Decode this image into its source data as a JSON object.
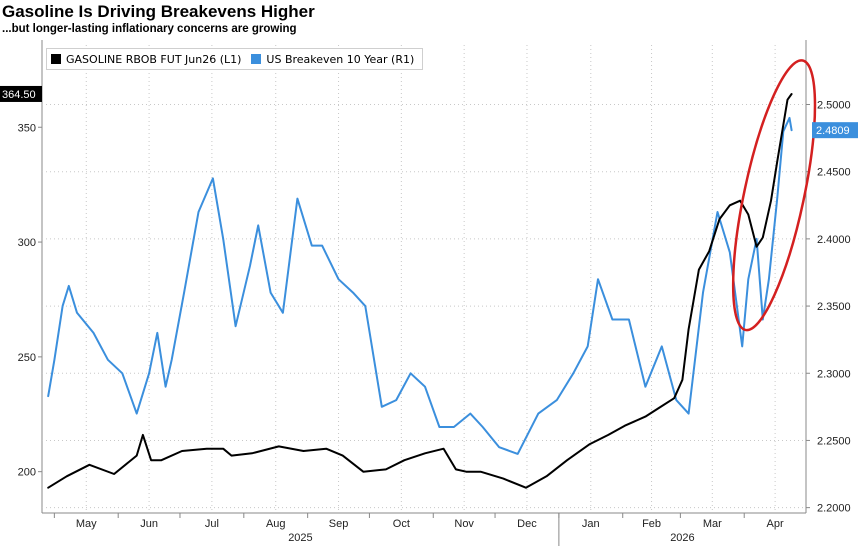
{
  "chart_data": {
    "type": "line",
    "title": "Gasoline Is Driving Breakevens Higher",
    "subtitle": "...but longer-lasting inflationary concerns are growing",
    "colors": {
      "gasoline": "#000000",
      "breakeven": "#3b8fdd",
      "annotation": "#d42020",
      "grid": "#c8c8c8"
    },
    "legend": {
      "placement": "top-left"
    },
    "grid": true,
    "x_axis": {
      "months": [
        "May",
        "Jun",
        "Jul",
        "Aug",
        "Sep",
        "Oct",
        "Nov",
        "Dec",
        "Jan",
        "Feb",
        "Mar",
        "Apr"
      ],
      "years": [
        "2025",
        "2026"
      ],
      "range": [
        "2025-04-28",
        "2026-04-24"
      ]
    },
    "left_axis": {
      "ticks": [
        "200",
        "250",
        "300",
        "350"
      ],
      "ylim": [
        182,
        388
      ]
    },
    "right_axis": {
      "ticks": [
        "2.2000",
        "2.2500",
        "2.3000",
        "2.3500",
        "2.4000",
        "2.4500",
        "2.5000"
      ],
      "ylim": [
        2.196,
        2.548
      ]
    },
    "last_value_labels": {
      "gasoline": "364.50",
      "breakeven": "2.4809"
    },
    "series": [
      {
        "name": "GASOLINE RBOB FUT Jun26  (L1)",
        "axis": "left",
        "x": [
          "2025-04-28",
          "2025-05-07",
          "2025-05-18",
          "2025-05-30",
          "2025-06-10",
          "2025-06-13",
          "2025-06-17",
          "2025-06-22",
          "2025-07-02",
          "2025-07-14",
          "2025-07-22",
          "2025-07-26",
          "2025-08-05",
          "2025-08-18",
          "2025-08-30",
          "2025-09-10",
          "2025-09-18",
          "2025-09-28",
          "2025-10-09",
          "2025-10-18",
          "2025-10-28",
          "2025-11-06",
          "2025-11-12",
          "2025-11-17",
          "2025-11-24",
          "2025-12-05",
          "2025-12-16",
          "2025-12-26",
          "2026-01-05",
          "2026-01-16",
          "2026-01-25",
          "2026-02-02",
          "2026-02-12",
          "2026-02-19",
          "2026-02-26",
          "2026-03-02",
          "2026-03-05",
          "2026-03-10",
          "2026-03-15",
          "2026-03-20",
          "2026-03-25",
          "2026-03-30",
          "2026-04-03",
          "2026-04-07",
          "2026-04-10",
          "2026-04-14",
          "2026-04-17",
          "2026-04-20",
          "2026-04-22",
          "2026-04-24"
        ],
        "values": [
          193,
          198,
          203,
          199,
          207,
          216,
          205,
          205,
          209,
          210,
          210,
          207,
          208,
          211,
          209,
          210,
          207,
          200,
          201,
          205,
          208,
          210,
          201,
          200,
          200,
          197,
          193,
          198,
          205,
          212,
          216,
          220,
          224,
          228,
          232,
          240,
          262,
          288,
          296,
          310,
          316,
          318,
          312,
          298,
          302,
          318,
          335,
          351,
          362,
          364.5
        ]
      },
      {
        "name": "US Breakeven 10 Year  (R1)",
        "axis": "right",
        "x": [
          "2025-04-28",
          "2025-05-01",
          "2025-05-05",
          "2025-05-08",
          "2025-05-12",
          "2025-05-20",
          "2025-05-27",
          "2025-06-03",
          "2025-06-10",
          "2025-06-16",
          "2025-06-20",
          "2025-06-24",
          "2025-06-27",
          "2025-07-03",
          "2025-07-10",
          "2025-07-17",
          "2025-07-22",
          "2025-07-28",
          "2025-08-04",
          "2025-08-08",
          "2025-08-14",
          "2025-08-20",
          "2025-08-27",
          "2025-09-03",
          "2025-09-08",
          "2025-09-16",
          "2025-09-23",
          "2025-09-29",
          "2025-10-07",
          "2025-10-14",
          "2025-10-21",
          "2025-10-28",
          "2025-11-04",
          "2025-11-11",
          "2025-11-19",
          "2025-11-25",
          "2025-12-03",
          "2025-12-12",
          "2025-12-22",
          "2025-12-31",
          "2026-01-08",
          "2026-01-15",
          "2026-01-20",
          "2026-01-27",
          "2026-02-04",
          "2026-02-12",
          "2026-02-20",
          "2026-02-27",
          "2026-03-05",
          "2026-03-12",
          "2026-03-19",
          "2026-03-25",
          "2026-03-31",
          "2026-04-03",
          "2026-04-07",
          "2026-04-10",
          "2026-04-13",
          "2026-04-17",
          "2026-04-20",
          "2026-04-23",
          "2026-04-24"
        ],
        "values": [
          2.283,
          2.31,
          2.35,
          2.365,
          2.345,
          2.33,
          2.31,
          2.3,
          2.27,
          2.3,
          2.33,
          2.29,
          2.31,
          2.36,
          2.42,
          2.445,
          2.4,
          2.335,
          2.38,
          2.41,
          2.36,
          2.345,
          2.43,
          2.395,
          2.395,
          2.37,
          2.36,
          2.35,
          2.275,
          2.28,
          2.3,
          2.29,
          2.26,
          2.26,
          2.27,
          2.26,
          2.245,
          2.24,
          2.27,
          2.28,
          2.3,
          2.32,
          2.37,
          2.34,
          2.34,
          2.29,
          2.32,
          2.28,
          2.27,
          2.36,
          2.42,
          2.39,
          2.32,
          2.37,
          2.4,
          2.34,
          2.37,
          2.43,
          2.48,
          2.49,
          2.4809
        ]
      }
    ],
    "annotation": {
      "type": "ellipse",
      "x_range": [
        "2026-04-01",
        "2026-04-30"
      ],
      "y_range_right": [
        2.33,
        2.535
      ]
    }
  }
}
